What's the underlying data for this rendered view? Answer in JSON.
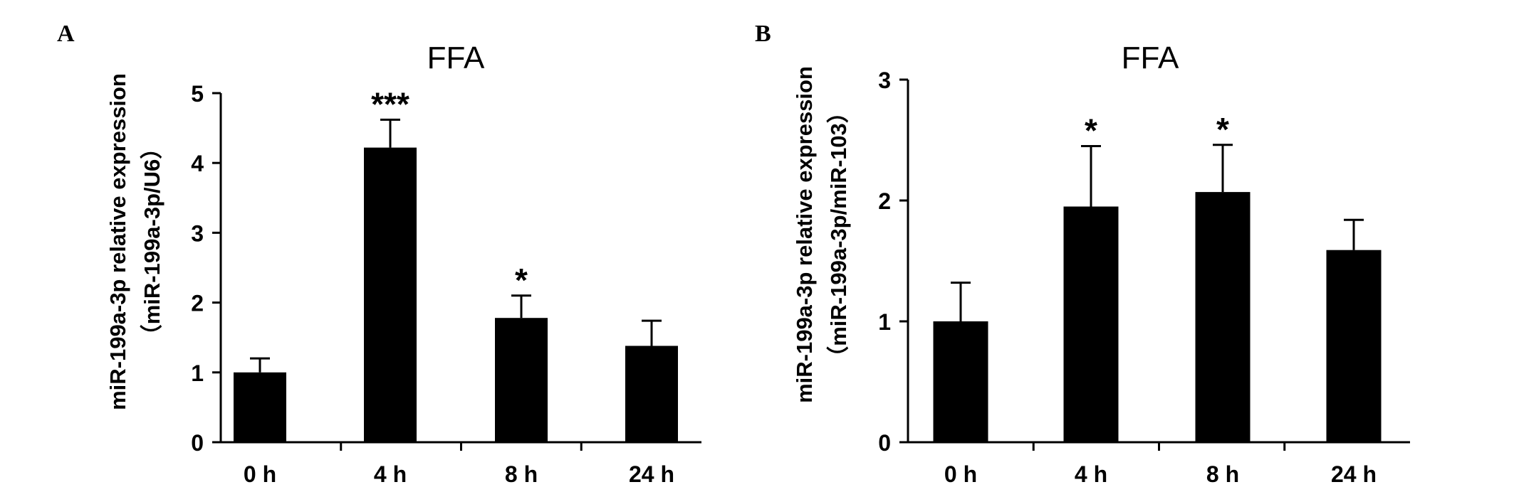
{
  "chart_data": [
    {
      "panel": "A",
      "type": "bar",
      "title": "FFA",
      "ylabel_line1": "miR-199a-3p relative expression",
      "ylabel_line2": "（miR-199a-3p/U6）",
      "categories": [
        "0 h",
        "4 h",
        "8 h",
        "24 h"
      ],
      "values": [
        1.0,
        4.22,
        1.78,
        1.38
      ],
      "errors": [
        0.2,
        0.4,
        0.32,
        0.36
      ],
      "significance": [
        "",
        "***",
        "*",
        ""
      ],
      "ylim": [
        0,
        5
      ],
      "yticks": [
        "0",
        "1",
        "2",
        "3",
        "4",
        "5"
      ],
      "grid": false,
      "bar_color": "#000000"
    },
    {
      "panel": "B",
      "type": "bar",
      "title": "FFA",
      "ylabel_line1": "miR-199a-3p relative expression",
      "ylabel_line2": "（miR-199a-3p/miR-103）",
      "categories": [
        "0 h",
        "4 h",
        "8 h",
        "24 h"
      ],
      "values": [
        1.0,
        1.95,
        2.07,
        1.59
      ],
      "errors": [
        0.32,
        0.5,
        0.39,
        0.25
      ],
      "significance": [
        "",
        "*",
        "*",
        ""
      ],
      "ylim": [
        0,
        3
      ],
      "yticks": [
        "0",
        "1",
        "2",
        "3"
      ],
      "grid": false,
      "bar_color": "#000000"
    }
  ]
}
